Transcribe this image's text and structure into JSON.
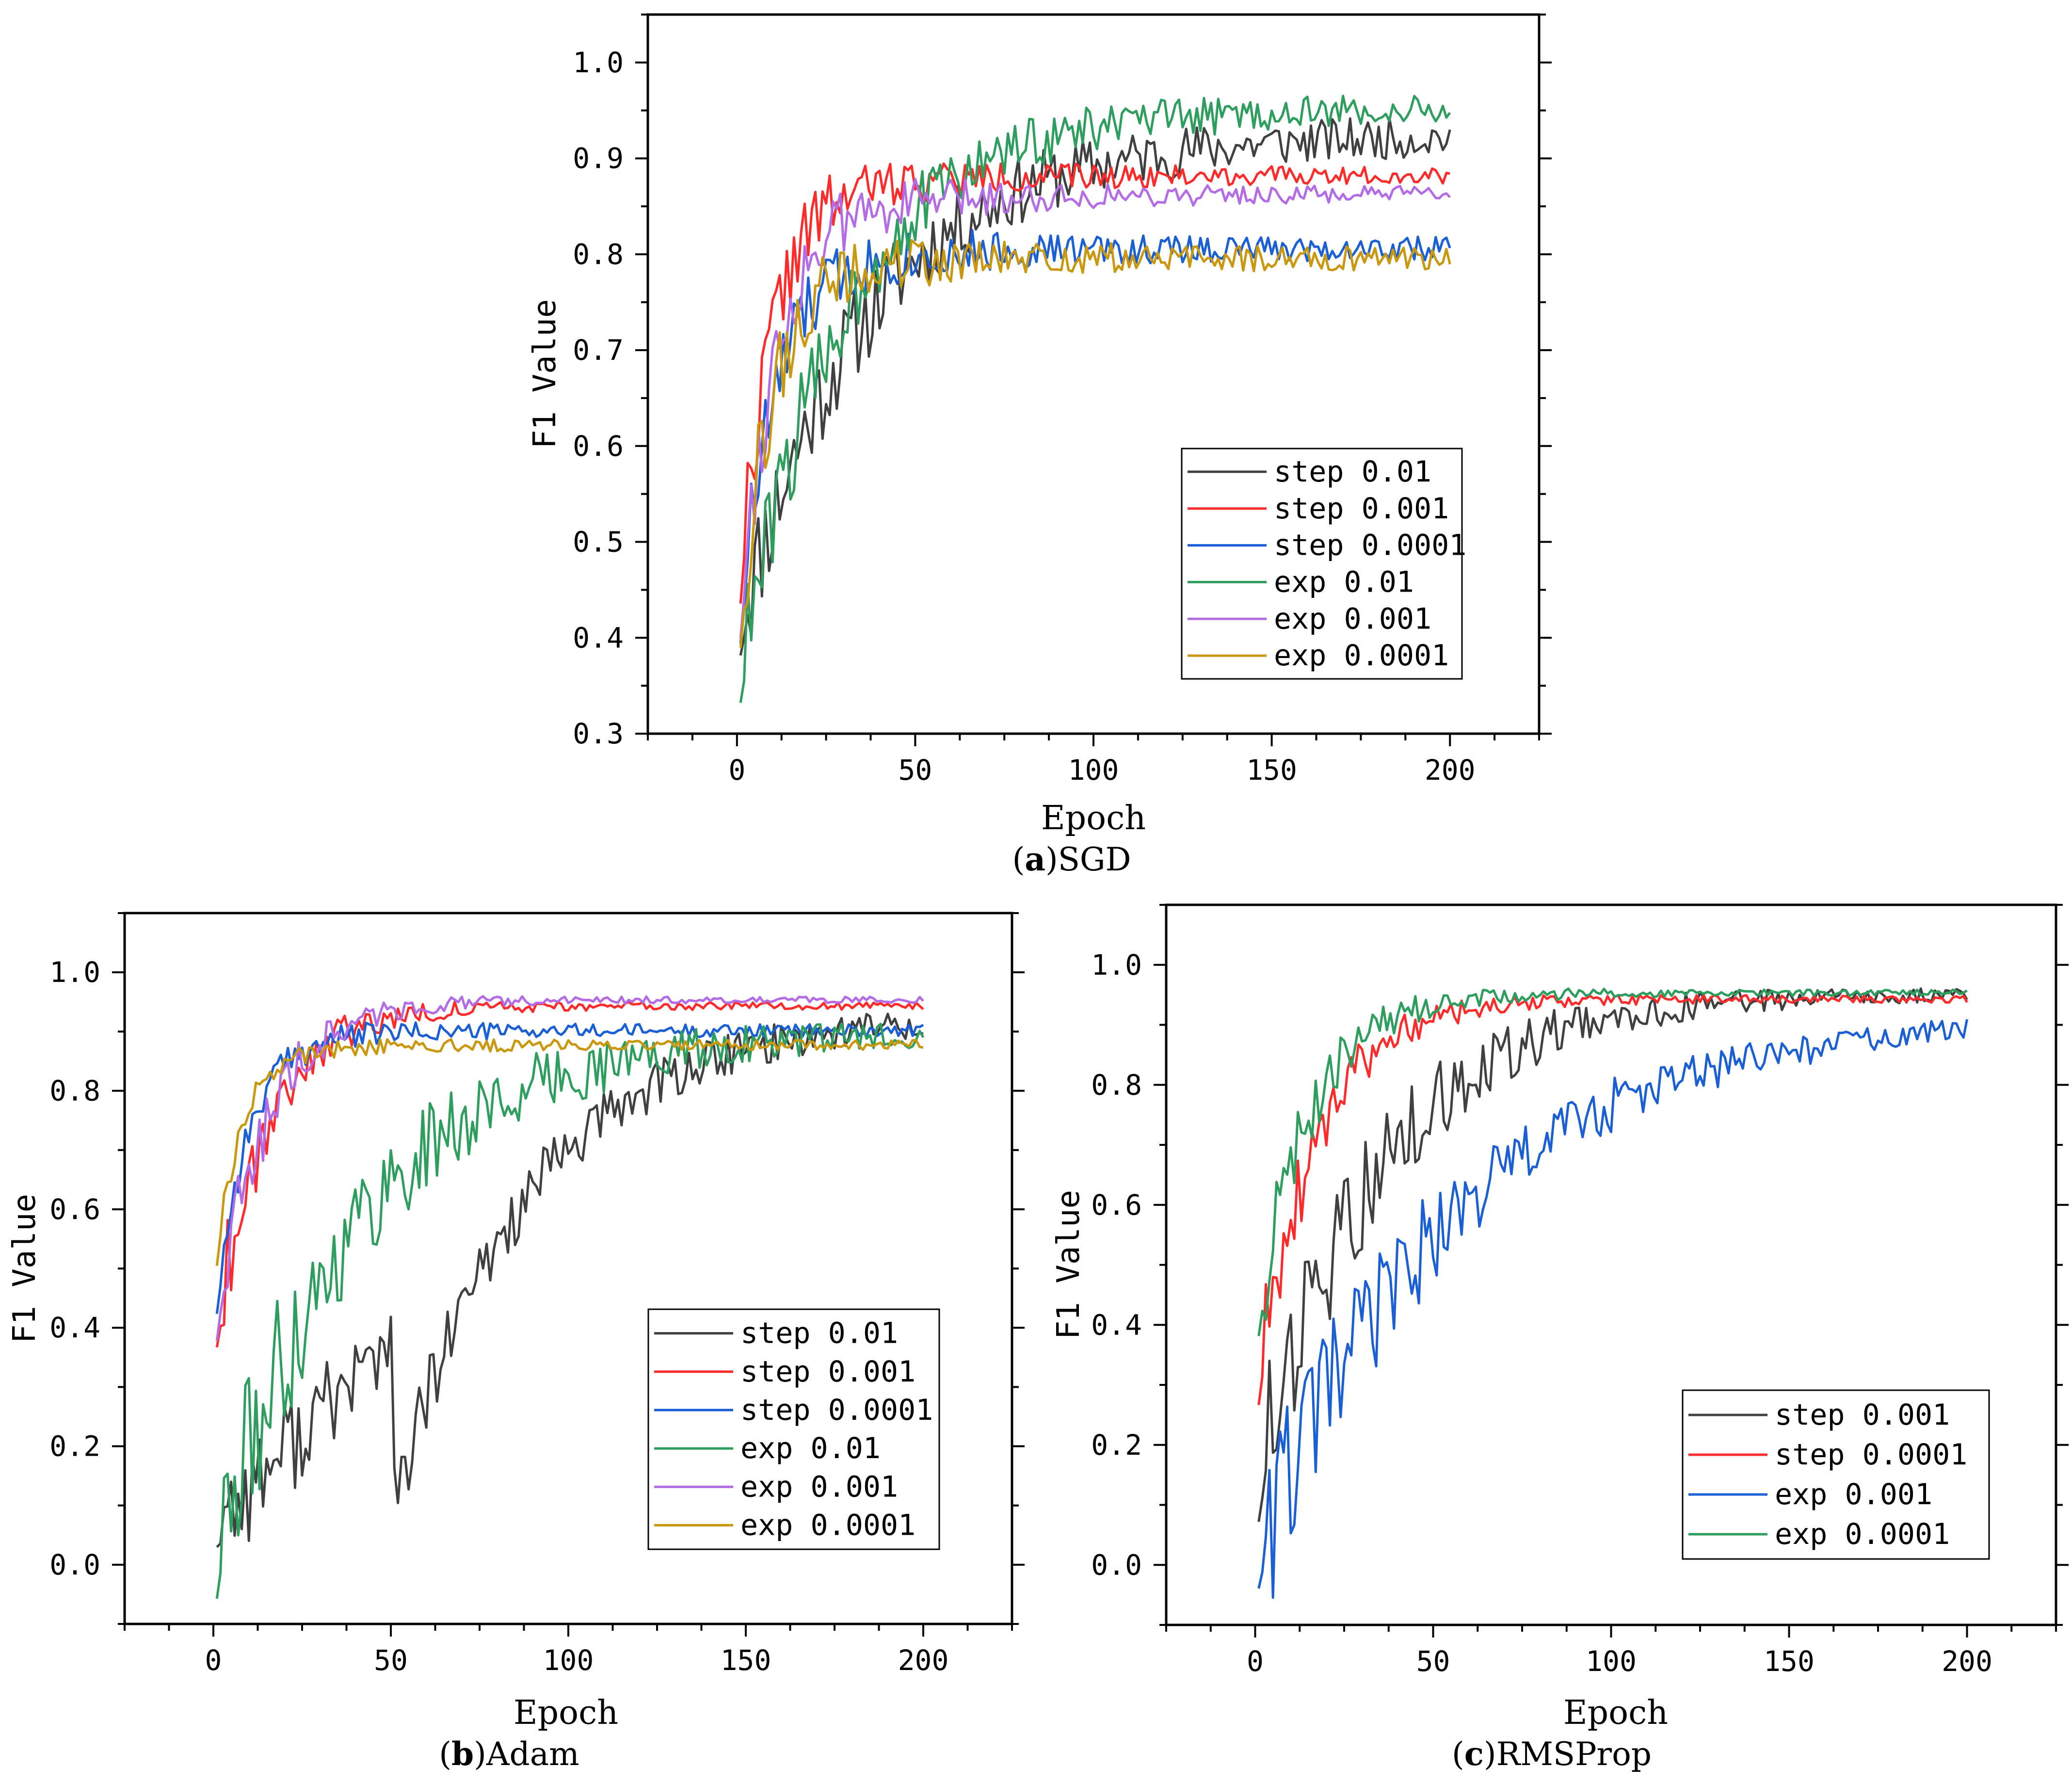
{
  "chart_data": [
    {
      "id": "a",
      "type": "line",
      "caption_letter": "a",
      "caption_name": "SGD",
      "caption_open": "(",
      "caption_close": ")",
      "xlabel": "Epoch",
      "ylabel": "F1 Value",
      "xlim": [
        -25,
        225
      ],
      "ylim": [
        0.3,
        1.05
      ],
      "xticks": [
        0,
        50,
        100,
        150,
        200
      ],
      "yticks": [
        0.3,
        0.4,
        0.5,
        0.6,
        0.7,
        0.8,
        0.9,
        1.0
      ],
      "ytick_labels": [
        "0.3",
        "0.4",
        "0.5",
        "0.6",
        "0.7",
        "0.8",
        "0.9",
        "1.0"
      ],
      "legend_position": "center-right",
      "series": [
        {
          "name": "step 0.01",
          "color": "#404040",
          "start": 0.42,
          "plateau": 0.93,
          "tau": 35,
          "noise": 0.05,
          "noise_decay": 90,
          "seed": 11,
          "noise_floor": 0.015
        },
        {
          "name": "step 0.001",
          "color": "#ff2a2a",
          "start": 0.43,
          "plateau": 0.885,
          "tau": 9,
          "noise": 0.045,
          "noise_decay": 45,
          "seed": 22,
          "noise_floor": 0.008
        },
        {
          "name": "step 0.0001",
          "color": "#1a5fd6",
          "start": 0.4,
          "plateau": 0.81,
          "tau": 10,
          "noise": 0.045,
          "noise_decay": 45,
          "seed": 33,
          "noise_floor": 0.012
        },
        {
          "name": "exp 0.01",
          "color": "#2e9e5e",
          "start": 0.36,
          "plateau": 0.955,
          "tau": 28,
          "noise": 0.05,
          "noise_decay": 70,
          "seed": 44,
          "noise_floor": 0.012
        },
        {
          "name": "exp 0.001",
          "color": "#b36be6",
          "start": 0.4,
          "plateau": 0.865,
          "tau": 10,
          "noise": 0.05,
          "noise_decay": 45,
          "seed": 55,
          "noise_floor": 0.008
        },
        {
          "name": "exp 0.0001",
          "color": "#c9980e",
          "start": 0.39,
          "plateau": 0.8,
          "tau": 9,
          "noise": 0.045,
          "noise_decay": 45,
          "seed": 66,
          "noise_floor": 0.012
        }
      ]
    },
    {
      "id": "b",
      "type": "line",
      "caption_letter": "b",
      "caption_name": "Adam",
      "caption_open": "(",
      "caption_close": ")",
      "xlabel": "Epoch",
      "ylabel": "F1 Value",
      "xlim": [
        -25,
        225
      ],
      "ylim": [
        -0.1,
        1.1
      ],
      "xticks": [
        0,
        50,
        100,
        150,
        200
      ],
      "yticks": [
        0.0,
        0.2,
        0.4,
        0.6,
        0.8,
        1.0
      ],
      "ytick_labels": [
        "0.0",
        "0.2",
        "0.4",
        "0.6",
        "0.8",
        "1.0"
      ],
      "legend_position": "center-right",
      "series": [
        {
          "name": "step 0.01",
          "color": "#404040",
          "start": 0.1,
          "plateau": 0.94,
          "tau": 38,
          "delay": 50,
          "noise": 0.09,
          "noise_decay": 120,
          "seed": 77,
          "noise_floor": 0.01
        },
        {
          "name": "step 0.001",
          "color": "#ff2a2a",
          "start": 0.4,
          "plateau": 0.945,
          "tau": 14,
          "noise": 0.09,
          "noise_decay": 28,
          "seed": 88,
          "noise_floor": 0.006
        },
        {
          "name": "step 0.0001",
          "color": "#1a5fd6",
          "start": 0.4,
          "plateau": 0.905,
          "tau": 9,
          "noise": 0.03,
          "noise_decay": 40,
          "seed": 99,
          "noise_floor": 0.01
        },
        {
          "name": "exp 0.01",
          "color": "#2e9e5e",
          "start": 0.03,
          "plateau": 0.905,
          "tau": 38,
          "noise": 0.14,
          "noise_decay": 80,
          "seed": 111,
          "noise_floor": 0.01
        },
        {
          "name": "exp 0.001",
          "color": "#b36be6",
          "start": 0.4,
          "plateau": 0.955,
          "tau": 14,
          "noise": 0.08,
          "noise_decay": 28,
          "seed": 122,
          "noise_floor": 0.005
        },
        {
          "name": "exp 0.0001",
          "color": "#c9980e",
          "start": 0.47,
          "plateau": 0.88,
          "tau": 7,
          "noise": 0.02,
          "noise_decay": 40,
          "seed": 133,
          "noise_floor": 0.008
        }
      ]
    },
    {
      "id": "c",
      "type": "line",
      "caption_letter": "c",
      "caption_name": "RMSProp",
      "caption_open": "(",
      "caption_close": ")",
      "xlabel": "Epoch",
      "ylabel": "F1 Value",
      "xlim": [
        -25,
        225
      ],
      "ylim": [
        -0.1,
        1.1
      ],
      "xticks": [
        0,
        50,
        100,
        150,
        200
      ],
      "yticks": [
        0.0,
        0.2,
        0.4,
        0.6,
        0.8,
        1.0
      ],
      "ytick_labels": [
        "0.0",
        "0.2",
        "0.4",
        "0.6",
        "0.8",
        "1.0"
      ],
      "legend_position": "bottom-right",
      "series": [
        {
          "name": "step 0.001",
          "color": "#404040",
          "start": 0.15,
          "plateau": 0.955,
          "tau": 32,
          "noise": 0.14,
          "noise_decay": 60,
          "seed": 144,
          "noise_floor": 0.006
        },
        {
          "name": "step 0.0001",
          "color": "#ff2a2a",
          "start": 0.3,
          "plateau": 0.945,
          "tau": 16,
          "noise": 0.1,
          "noise_decay": 28,
          "seed": 155,
          "noise_floor": 0.006
        },
        {
          "name": "exp 0.001",
          "color": "#1a5fd6",
          "start": 0.05,
          "plateau": 0.92,
          "tau": 55,
          "noise": 0.14,
          "noise_decay": 70,
          "seed": 166,
          "noise_floor": 0.012
        },
        {
          "name": "exp 0.0001",
          "color": "#2e9e5e",
          "start": 0.4,
          "plateau": 0.955,
          "tau": 14,
          "noise": 0.08,
          "noise_decay": 30,
          "seed": 177,
          "noise_floor": 0.005
        }
      ]
    }
  ]
}
